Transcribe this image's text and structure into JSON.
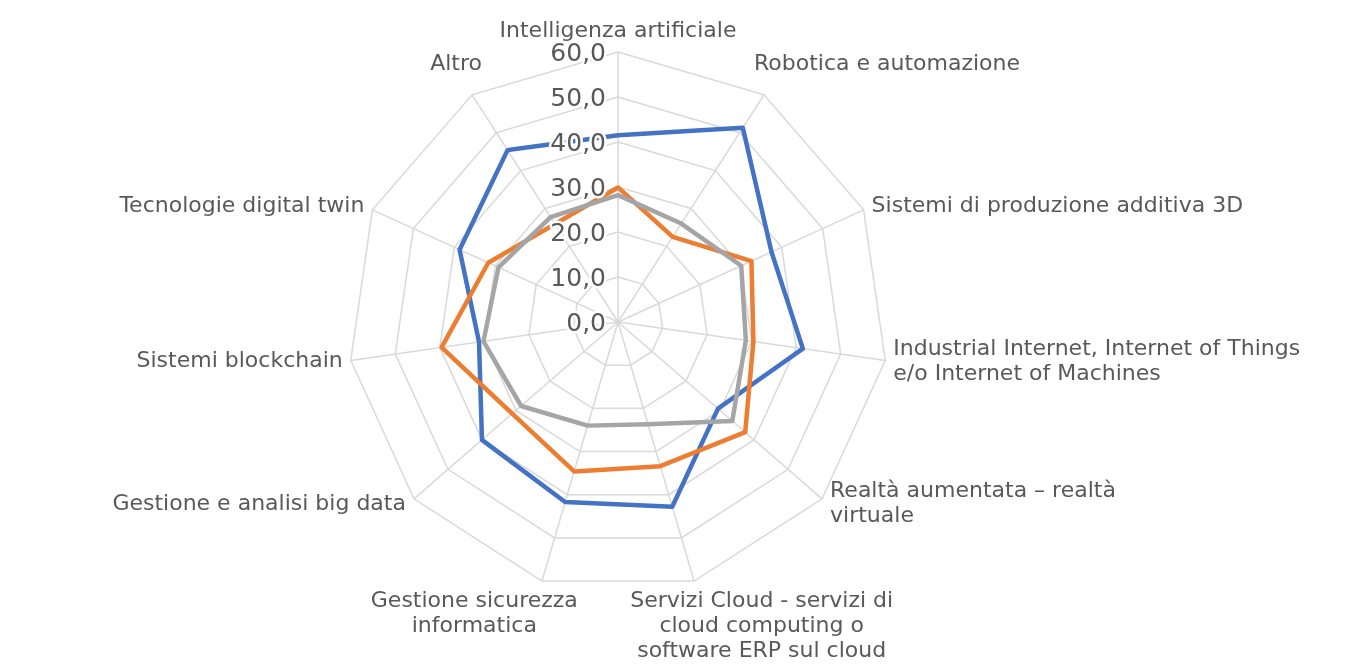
{
  "chart_data": {
    "type": "radar",
    "categories": [
      "Intelligenza artificiale",
      "Robotica e automazione",
      "Sistemi di produzione additiva 3D",
      "Industrial Internet, Internet of Things e/o Internet of Machines",
      "Realtà aumentata – realtà virtuale",
      "Servizi Cloud - servizi di cloud computing o software ERP sul cloud",
      "Gestione sicurezza informatica",
      "Gestione e analisi big data",
      "Sistemi blockchain",
      "Tecnologie digital twin",
      "Altro"
    ],
    "series": [
      {
        "color": "#4472c4",
        "values": [
          41.5,
          51.3,
          37.5,
          41.5,
          29.4,
          42.8,
          41.7,
          40.0,
          31.2,
          38.7,
          45.4
        ]
      },
      {
        "color": "#ed7d31",
        "values": [
          29.9,
          22.5,
          32.6,
          30.4,
          37.4,
          33.4,
          34.6,
          31.1,
          39.6,
          31.7,
          25.9
        ]
      },
      {
        "color": "#a5a5a5",
        "values": [
          28.2,
          26.0,
          30.1,
          28.7,
          33.6,
          23.7,
          24.0,
          28.5,
          30.2,
          29.2,
          27.7
        ]
      }
    ],
    "ylim": [
      0,
      60
    ],
    "yticks": [
      {
        "value": 0,
        "label": "0,0"
      },
      {
        "value": 10,
        "label": "10,0"
      },
      {
        "value": 20,
        "label": "20,0"
      },
      {
        "value": 30,
        "label": "30,0"
      },
      {
        "value": 40,
        "label": "40,0"
      },
      {
        "value": 50,
        "label": "50,0"
      },
      {
        "value": 60,
        "label": "60,0"
      }
    ],
    "grid": true,
    "marker": "none",
    "line_style": "solid"
  }
}
